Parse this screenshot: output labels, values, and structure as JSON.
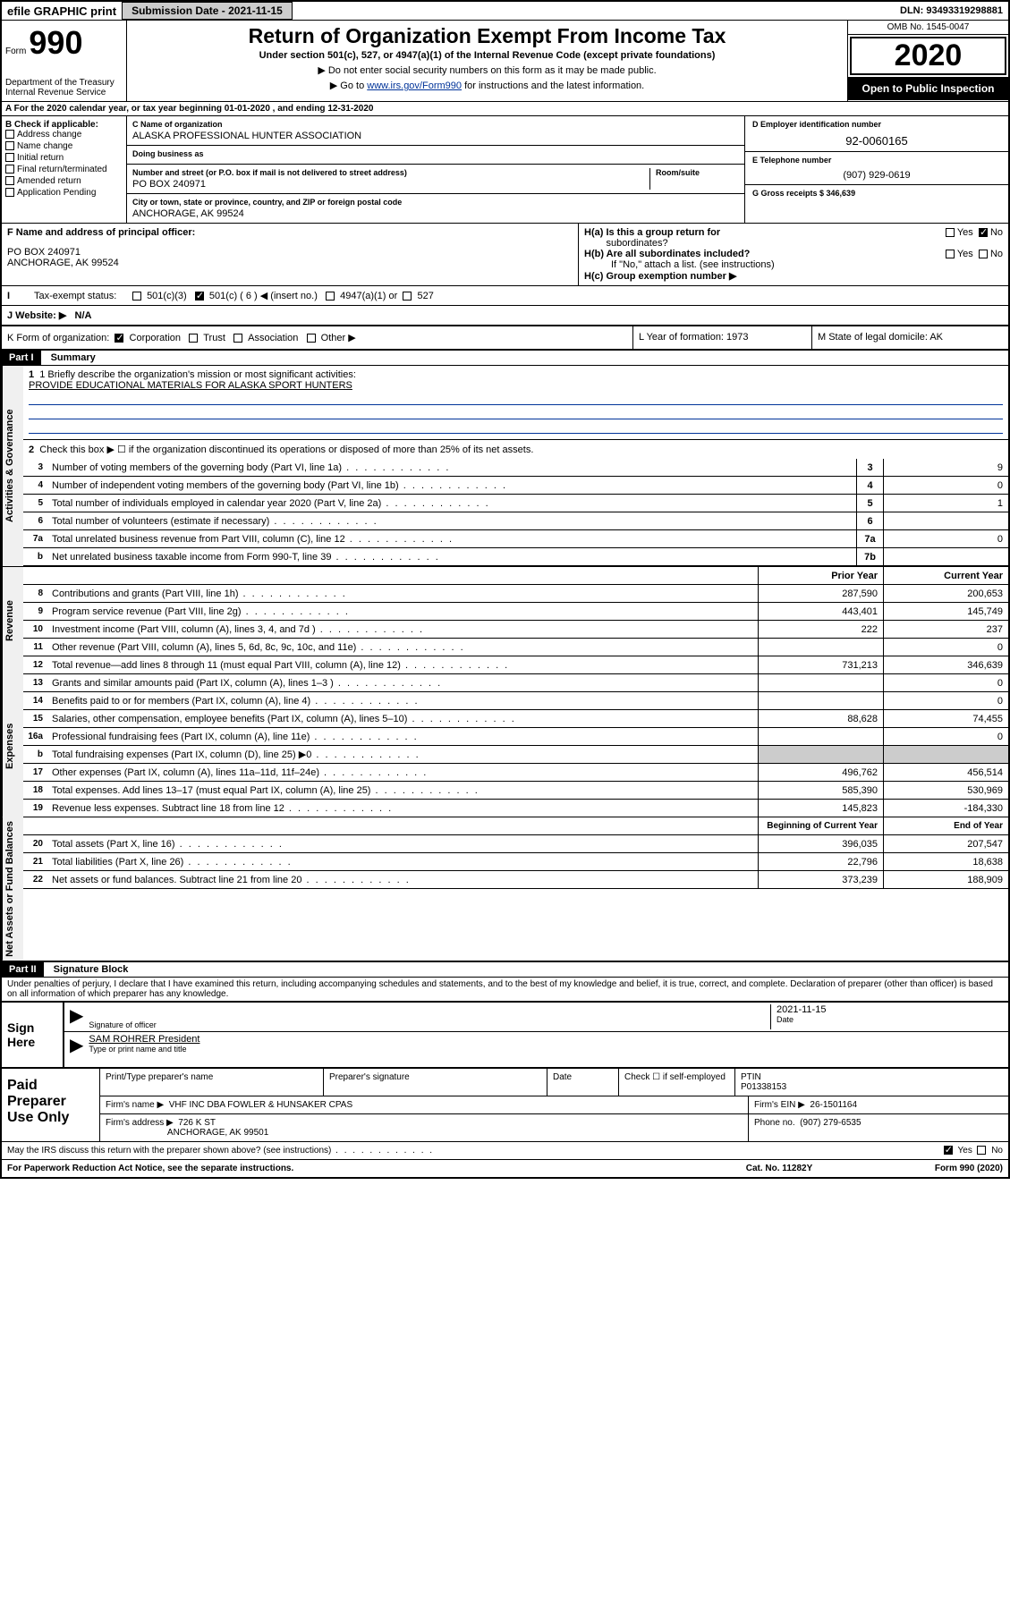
{
  "topbar": {
    "efile_label": "efile GRAPHIC print",
    "submission_btn": "Submission Date - 2021-11-15",
    "dln": "DLN: 93493319298881"
  },
  "header": {
    "form_word": "Form",
    "form_number": "990",
    "dept": "Department of the Treasury\nInternal Revenue Service",
    "title": "Return of Organization Exempt From Income Tax",
    "subtitle": "Under section 501(c), 527, or 4947(a)(1) of the Internal Revenue Code (except private foundations)",
    "instruct1": "▶ Do not enter social security numbers on this form as it may be made public.",
    "instruct2_pre": "▶ Go to ",
    "instruct2_link": "www.irs.gov/Form990",
    "instruct2_post": " for instructions and the latest information.",
    "omb": "OMB No. 1545-0047",
    "year": "2020",
    "inspection": "Open to Public Inspection"
  },
  "row_a": "A For the 2020 calendar year, or tax year beginning 01-01-2020   , and ending 12-31-2020",
  "section_b": {
    "header": "B Check if applicable:",
    "items": [
      "Address change",
      "Name change",
      "Initial return",
      "Final return/terminated",
      "Amended return",
      "Application Pending"
    ]
  },
  "section_c": {
    "name_label": "C Name of organization",
    "name": "ALASKA PROFESSIONAL HUNTER ASSOCIATION",
    "dba_label": "Doing business as",
    "dba": "",
    "street_label": "Number and street (or P.O. box if mail is not delivered to street address)",
    "room_label": "Room/suite",
    "street": "PO BOX 240971",
    "city_label": "City or town, state or province, country, and ZIP or foreign postal code",
    "city": "ANCHORAGE, AK  99524"
  },
  "section_d": {
    "ein_label": "D Employer identification number",
    "ein": "92-0060165",
    "phone_label": "E Telephone number",
    "phone": "(907) 929-0619",
    "gross_label": "G Gross receipts $ 346,639"
  },
  "section_f": {
    "label": "F  Name and address of principal officer:",
    "name": "",
    "addr1": "PO BOX 240971",
    "addr2": "ANCHORAGE, AK  99524"
  },
  "section_h": {
    "ha_label": "H(a)  Is this a group return for",
    "ha_sub": "subordinates?",
    "hb_label": "H(b)  Are all subordinates included?",
    "hb_note": "If \"No,\" attach a list. (see instructions)",
    "hc_label": "H(c)  Group exemption number ▶",
    "yes": "Yes",
    "no": "No"
  },
  "tax_exempt": {
    "label": "Tax-exempt status:",
    "opt_501c3": "501(c)(3)",
    "opt_501c": "501(c) ( 6 ) ◀ (insert no.)",
    "opt_4947": "4947(a)(1) or",
    "opt_527": "527"
  },
  "website": {
    "label": "J   Website: ▶",
    "value": "N/A"
  },
  "klm": {
    "k_label": "K Form of organization:",
    "k_corp": "Corporation",
    "k_trust": "Trust",
    "k_assoc": "Association",
    "k_other": "Other ▶",
    "l_label": "L Year of formation: 1973",
    "m_label": "M State of legal domicile: AK"
  },
  "part1": {
    "header": "Part I",
    "title": "Summary",
    "side_gov": "Activities & Governance",
    "side_rev": "Revenue",
    "side_exp": "Expenses",
    "side_net": "Net Assets or Fund Balances",
    "line1_label": "1  Briefly describe the organization's mission or most significant activities:",
    "line1_value": "PROVIDE EDUCATIONAL MATERIALS FOR ALASKA SPORT HUNTERS",
    "line2": "Check this box ▶ ☐  if the organization discontinued its operations or disposed of more than 25% of its net assets.",
    "lines_gov": [
      {
        "num": "3",
        "text": "Number of voting members of the governing body (Part VI, line 1a)",
        "box": "3",
        "val": "9"
      },
      {
        "num": "4",
        "text": "Number of independent voting members of the governing body (Part VI, line 1b)",
        "box": "4",
        "val": "0"
      },
      {
        "num": "5",
        "text": "Total number of individuals employed in calendar year 2020 (Part V, line 2a)",
        "box": "5",
        "val": "1"
      },
      {
        "num": "6",
        "text": "Total number of volunteers (estimate if necessary)",
        "box": "6",
        "val": ""
      },
      {
        "num": "7a",
        "text": "Total unrelated business revenue from Part VIII, column (C), line 12",
        "box": "7a",
        "val": "0"
      },
      {
        "num": "b",
        "text": "Net unrelated business taxable income from Form 990-T, line 39",
        "box": "7b",
        "val": ""
      }
    ],
    "col_prior": "Prior Year",
    "col_current": "Current Year",
    "col_begin": "Beginning of Current Year",
    "col_end": "End of Year",
    "lines_rev": [
      {
        "num": "8",
        "text": "Contributions and grants (Part VIII, line 1h)",
        "prior": "287,590",
        "curr": "200,653"
      },
      {
        "num": "9",
        "text": "Program service revenue (Part VIII, line 2g)",
        "prior": "443,401",
        "curr": "145,749"
      },
      {
        "num": "10",
        "text": "Investment income (Part VIII, column (A), lines 3, 4, and 7d )",
        "prior": "222",
        "curr": "237"
      },
      {
        "num": "11",
        "text": "Other revenue (Part VIII, column (A), lines 5, 6d, 8c, 9c, 10c, and 11e)",
        "prior": "",
        "curr": "0"
      },
      {
        "num": "12",
        "text": "Total revenue—add lines 8 through 11 (must equal Part VIII, column (A), line 12)",
        "prior": "731,213",
        "curr": "346,639"
      }
    ],
    "lines_exp": [
      {
        "num": "13",
        "text": "Grants and similar amounts paid (Part IX, column (A), lines 1–3 )",
        "prior": "",
        "curr": "0"
      },
      {
        "num": "14",
        "text": "Benefits paid to or for members (Part IX, column (A), line 4)",
        "prior": "",
        "curr": "0"
      },
      {
        "num": "15",
        "text": "Salaries, other compensation, employee benefits (Part IX, column (A), lines 5–10)",
        "prior": "88,628",
        "curr": "74,455"
      },
      {
        "num": "16a",
        "text": "Professional fundraising fees (Part IX, column (A), line 11e)",
        "prior": "",
        "curr": "0"
      },
      {
        "num": "b",
        "text": "Total fundraising expenses (Part IX, column (D), line 25) ▶0",
        "prior": "GREY",
        "curr": "GREY"
      },
      {
        "num": "17",
        "text": "Other expenses (Part IX, column (A), lines 11a–11d, 11f–24e)",
        "prior": "496,762",
        "curr": "456,514"
      },
      {
        "num": "18",
        "text": "Total expenses. Add lines 13–17 (must equal Part IX, column (A), line 25)",
        "prior": "585,390",
        "curr": "530,969"
      },
      {
        "num": "19",
        "text": "Revenue less expenses. Subtract line 18 from line 12",
        "prior": "145,823",
        "curr": "-184,330"
      }
    ],
    "lines_net": [
      {
        "num": "20",
        "text": "Total assets (Part X, line 16)",
        "prior": "396,035",
        "curr": "207,547"
      },
      {
        "num": "21",
        "text": "Total liabilities (Part X, line 26)",
        "prior": "22,796",
        "curr": "18,638"
      },
      {
        "num": "22",
        "text": "Net assets or fund balances. Subtract line 21 from line 20",
        "prior": "373,239",
        "curr": "188,909"
      }
    ]
  },
  "part2": {
    "header": "Part II",
    "title": "Signature Block",
    "declaration": "Under penalties of perjury, I declare that I have examined this return, including accompanying schedules and statements, and to the best of my knowledge and belief, it is true, correct, and complete. Declaration of preparer (other than officer) is based on all information of which preparer has any knowledge.",
    "sign_here": "Sign Here",
    "sig_officer": "Signature of officer",
    "sig_date_label": "Date",
    "sig_date": "2021-11-15",
    "sig_name": "SAM ROHRER  President",
    "sig_name_label": "Type or print name and title",
    "paid_label": "Paid Preparer Use Only",
    "prep_name_label": "Print/Type preparer's name",
    "prep_sig_label": "Preparer's signature",
    "prep_date_label": "Date",
    "prep_check_label": "Check ☐ if self-employed",
    "ptin_label": "PTIN",
    "ptin": "P01338153",
    "firm_name_label": "Firm's name    ▶",
    "firm_name": "VHF INC DBA FOWLER & HUNSAKER CPAS",
    "firm_ein_label": "Firm's EIN ▶",
    "firm_ein": "26-1501164",
    "firm_addr_label": "Firm's address ▶",
    "firm_addr1": "726 K ST",
    "firm_addr2": "ANCHORAGE, AK  99501",
    "firm_phone_label": "Phone no.",
    "firm_phone": "(907) 279-6535",
    "discuss": "May the IRS discuss this return with the preparer shown above? (see instructions)",
    "yes": "Yes",
    "no": "No"
  },
  "footer": {
    "paperwork": "For Paperwork Reduction Act Notice, see the separate instructions.",
    "catno": "Cat. No. 11282Y",
    "formno": "Form 990 (2020)"
  }
}
